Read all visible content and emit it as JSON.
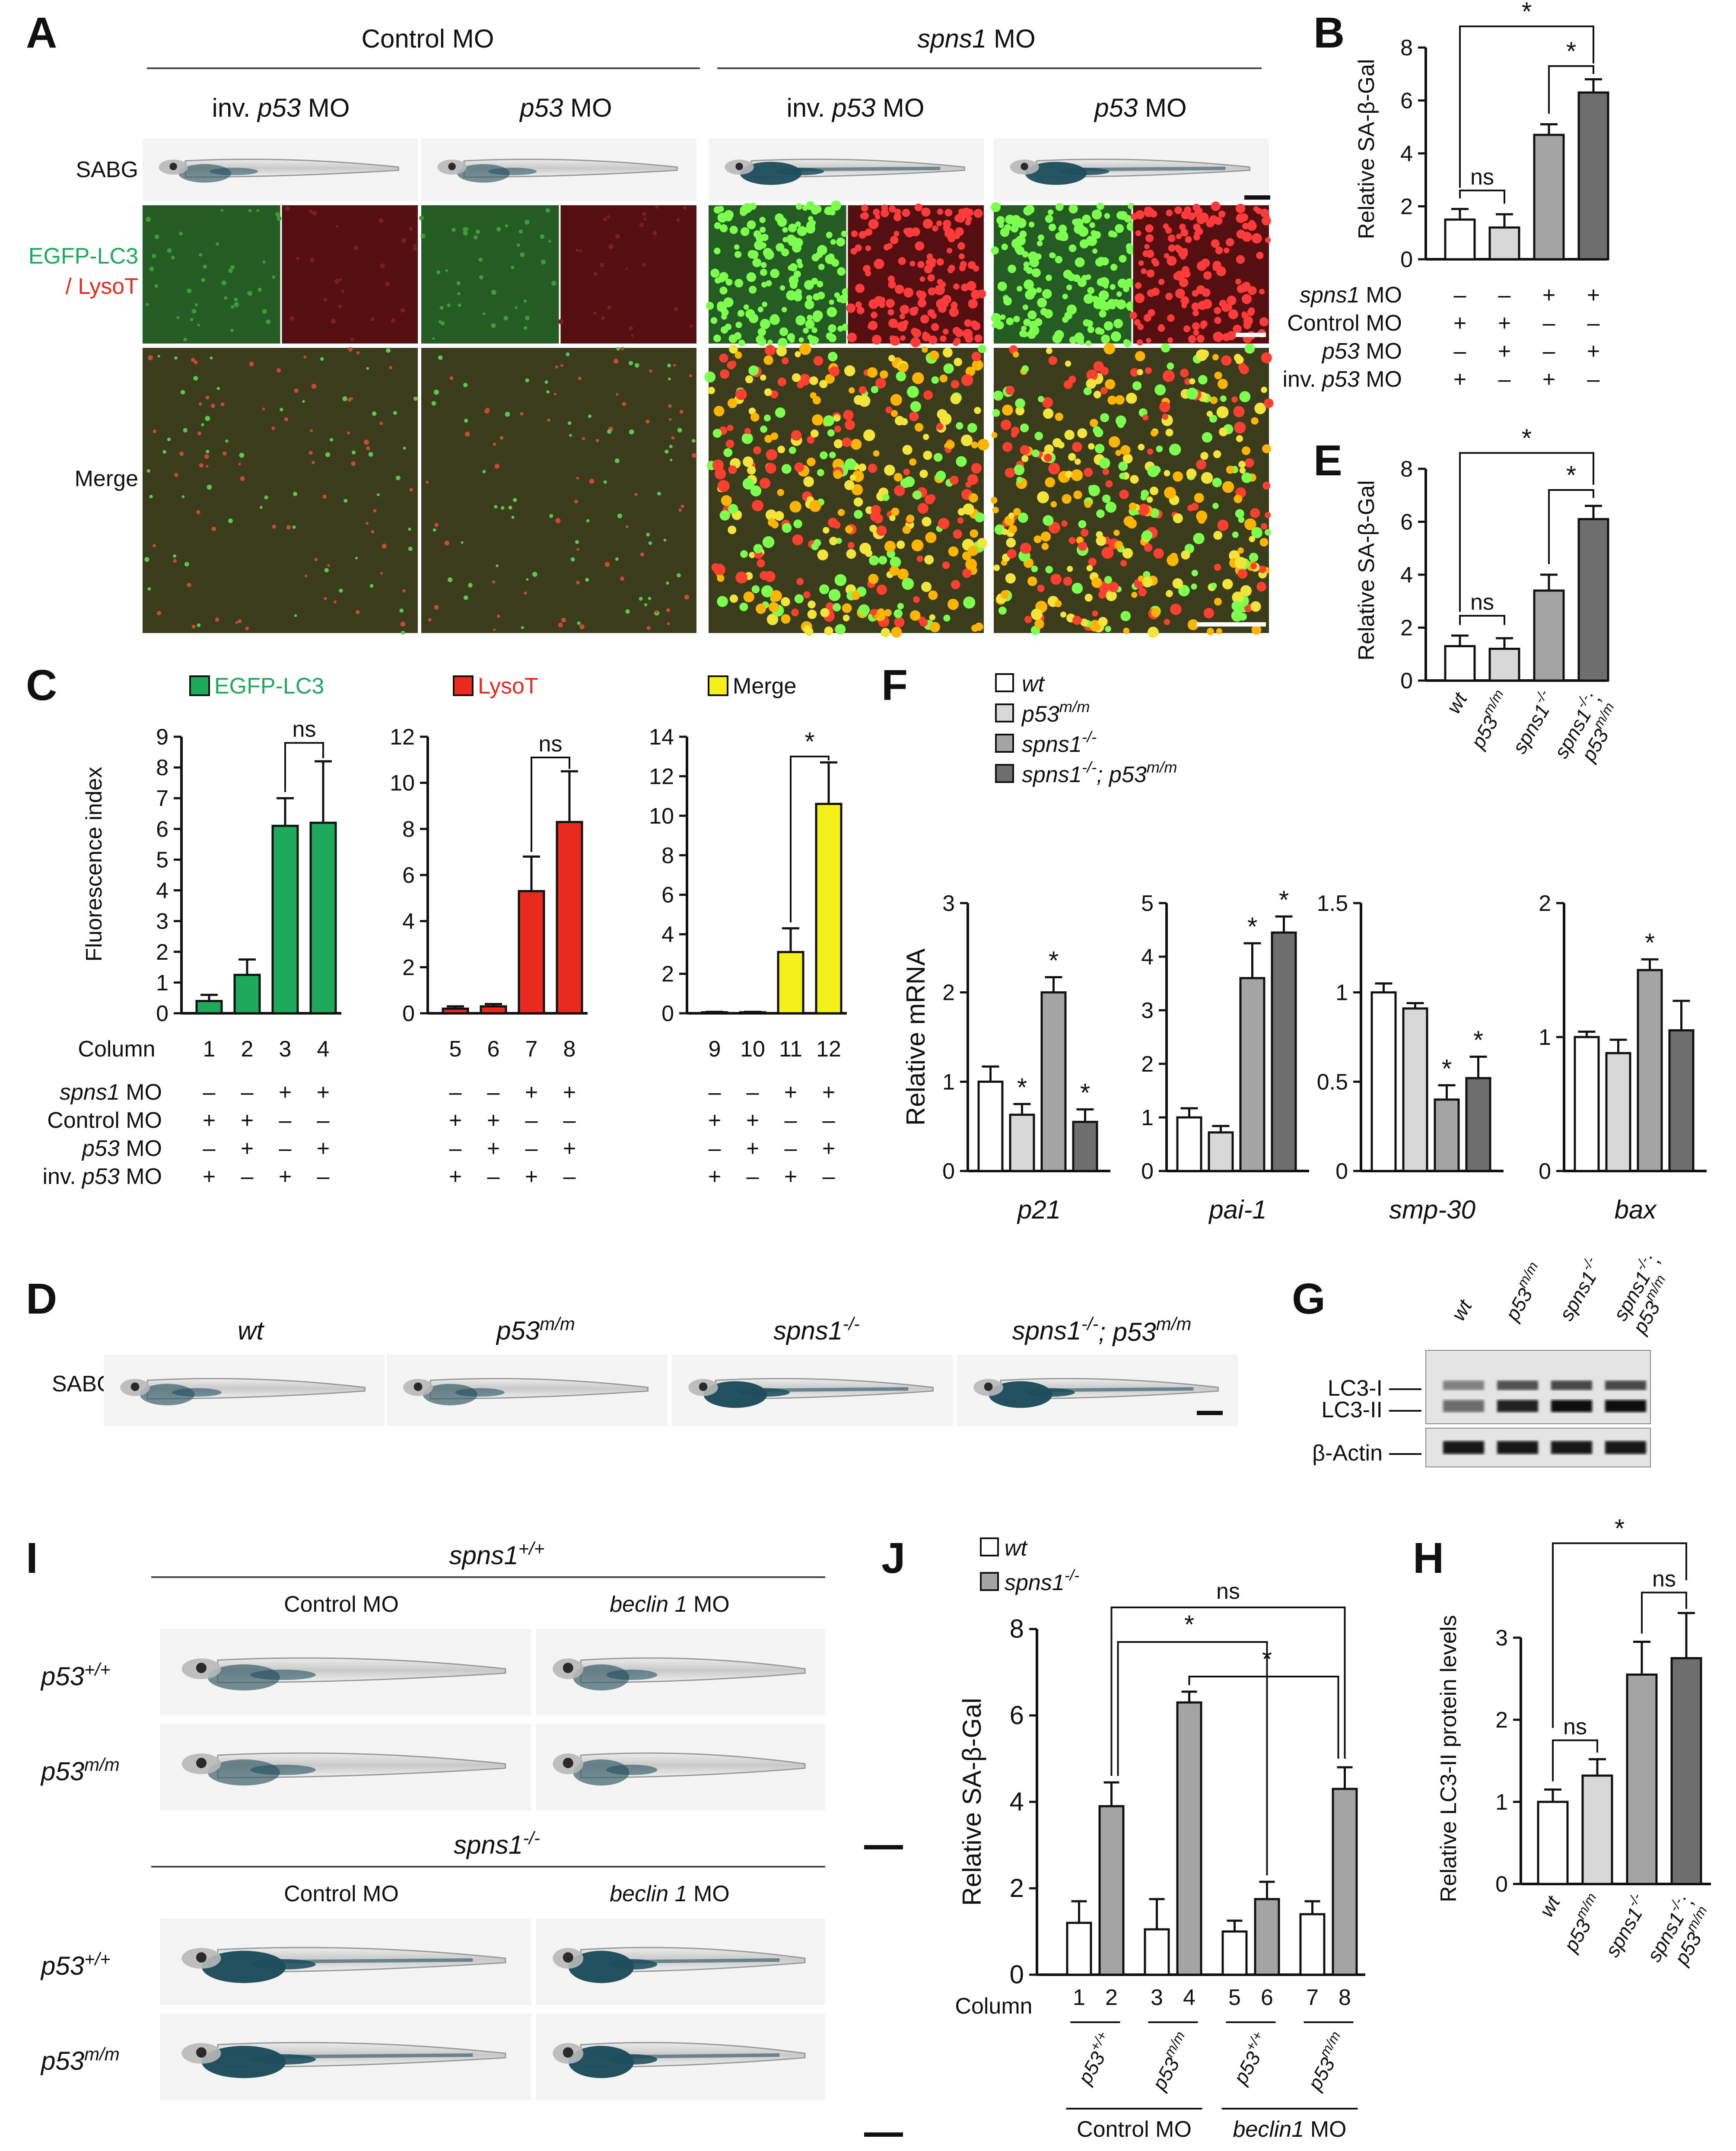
{
  "panel_letters": {
    "A": "A",
    "B": "B",
    "C": "C",
    "D": "D",
    "E": "E",
    "F": "F",
    "G": "G",
    "H": "H",
    "I": "I",
    "J": "J"
  },
  "colors": {
    "white": "#ffffff",
    "lightgray": "#d8d8d8",
    "midgray": "#a4a4a4",
    "darkgray": "#6e6e6e",
    "green": "#1daa5c",
    "red": "#e82a1f",
    "yellow": "#f5ef1a",
    "fish_blue": "#1e4d5c"
  },
  "panelA": {
    "groups": [
      {
        "label": "Control MO"
      },
      {
        "label": "spns1",
        "suffix": " MO"
      }
    ],
    "columns": [
      {
        "prefix": "inv. ",
        "gene": "p53",
        "suffix": " MO"
      },
      {
        "prefix": "",
        "gene": "p53",
        "suffix": " MO"
      },
      {
        "prefix": "inv. ",
        "gene": "p53",
        "suffix": " MO"
      },
      {
        "prefix": "",
        "gene": "p53",
        "suffix": " MO"
      }
    ],
    "row_sabg": "SABG",
    "row_lc3_a": "EGFP-LC3",
    "row_lc3_b": "/ LysoT",
    "row_merge": "Merge"
  },
  "matrix_rows": [
    {
      "gene": "spns1",
      "suffix": " MO",
      "marks": [
        "–",
        "–",
        "+",
        "+"
      ]
    },
    {
      "gene": "",
      "label": "Control MO",
      "marks": [
        "+",
        "+",
        "–",
        "–"
      ]
    },
    {
      "gene": "p53",
      "suffix": " MO",
      "marks": [
        "–",
        "+",
        "–",
        "+"
      ]
    },
    {
      "gene": "p53",
      "prefix": "inv. ",
      "suffix": " MO",
      "marks": [
        "+",
        "–",
        "+",
        "–"
      ]
    }
  ],
  "chart_data": [
    {
      "panel": "B",
      "type": "bar",
      "ylabel": "Relative SA-β-Gal",
      "ylim": [
        0,
        8
      ],
      "yticks": [
        0,
        2,
        4,
        6,
        8
      ],
      "values": [
        1.5,
        1.2,
        4.7,
        6.3
      ],
      "errors": [
        0.4,
        0.5,
        0.4,
        0.5
      ],
      "annotations": [
        {
          "from": 0,
          "to": 1,
          "text": "ns"
        },
        {
          "from": 2,
          "to": 3,
          "text": "*"
        },
        {
          "from": 0,
          "to": 3,
          "text": "*"
        }
      ]
    },
    {
      "panel": "C1",
      "type": "bar",
      "legend": "EGFP-LC3",
      "ylabel": "Fluorescence index",
      "ylim": [
        0,
        9
      ],
      "yticks": [
        0,
        1,
        2,
        3,
        4,
        5,
        6,
        7,
        8,
        9
      ],
      "categories": [
        "1",
        "2",
        "3",
        "4"
      ],
      "values": [
        0.4,
        1.25,
        6.1,
        6.2
      ],
      "errors": [
        0.2,
        0.5,
        0.9,
        2.0
      ],
      "annotations": [
        {
          "from": 2,
          "to": 3,
          "text": "ns"
        }
      ]
    },
    {
      "panel": "C2",
      "type": "bar",
      "legend": "LysoT",
      "ylim": [
        0,
        12
      ],
      "yticks": [
        0,
        2,
        4,
        6,
        8,
        10,
        12
      ],
      "categories": [
        "5",
        "6",
        "7",
        "8"
      ],
      "values": [
        0.2,
        0.3,
        5.3,
        8.3
      ],
      "errors": [
        0.1,
        0.1,
        1.5,
        2.2
      ],
      "annotations": [
        {
          "from": 2,
          "to": 3,
          "text": "ns"
        }
      ]
    },
    {
      "panel": "C3",
      "type": "bar",
      "legend": "Merge",
      "ylim": [
        0,
        14
      ],
      "yticks": [
        0,
        2,
        4,
        6,
        8,
        10,
        12,
        14
      ],
      "categories": [
        "9",
        "10",
        "11",
        "12"
      ],
      "values": [
        0.05,
        0.05,
        3.1,
        10.6
      ],
      "errors": [
        0.02,
        0.02,
        1.2,
        2.1
      ],
      "annotations": [
        {
          "from": 2,
          "to": 3,
          "text": "*"
        }
      ]
    },
    {
      "panel": "E",
      "type": "bar",
      "ylabel": "Relative SA-β-Gal",
      "ylim": [
        0,
        8
      ],
      "yticks": [
        0,
        2,
        4,
        6,
        8
      ],
      "values": [
        1.3,
        1.2,
        3.4,
        6.1
      ],
      "errors": [
        0.4,
        0.4,
        0.6,
        0.5
      ],
      "annotations": [
        {
          "from": 0,
          "to": 1,
          "text": "ns"
        },
        {
          "from": 2,
          "to": 3,
          "text": "*"
        },
        {
          "from": 0,
          "to": 3,
          "text": "*"
        }
      ]
    },
    {
      "panel": "F1",
      "type": "bar",
      "xlabel": "p21",
      "ylabel": "Relative mRNA",
      "ylim": [
        0,
        3
      ],
      "yticks": [
        0,
        1,
        2,
        3
      ],
      "values": [
        1.0,
        0.63,
        2.0,
        0.55
      ],
      "errors": [
        0.17,
        0.12,
        0.17,
        0.14
      ],
      "stars": [
        false,
        true,
        true,
        true
      ]
    },
    {
      "panel": "F2",
      "type": "bar",
      "xlabel": "pai-1",
      "ylim": [
        0,
        5
      ],
      "yticks": [
        0,
        1,
        2,
        3,
        4,
        5
      ],
      "values": [
        1.0,
        0.72,
        3.6,
        4.45
      ],
      "errors": [
        0.17,
        0.12,
        0.65,
        0.3
      ],
      "stars": [
        false,
        false,
        true,
        true
      ]
    },
    {
      "panel": "F3",
      "type": "bar",
      "xlabel": "smp-30",
      "ylim": [
        0,
        1.5
      ],
      "yticks": [
        0,
        0.5,
        1,
        1.5
      ],
      "values": [
        1.0,
        0.91,
        0.4,
        0.52
      ],
      "errors": [
        0.05,
        0.03,
        0.08,
        0.12
      ],
      "stars": [
        false,
        false,
        true,
        true
      ]
    },
    {
      "panel": "F4",
      "type": "bar",
      "xlabel": "bax",
      "ylim": [
        0,
        2
      ],
      "yticks": [
        0,
        1,
        2
      ],
      "values": [
        1.0,
        0.88,
        1.5,
        1.05
      ],
      "errors": [
        0.04,
        0.1,
        0.08,
        0.22
      ],
      "stars": [
        false,
        false,
        true,
        false
      ]
    },
    {
      "panel": "H",
      "type": "bar",
      "ylabel": "Relative LC3-II protein levels",
      "ylim": [
        0,
        3
      ],
      "yticks": [
        0,
        1,
        2,
        3
      ],
      "values": [
        1.0,
        1.32,
        2.55,
        2.75
      ],
      "errors": [
        0.15,
        0.2,
        0.4,
        0.55
      ],
      "annotations": [
        {
          "from": 0,
          "to": 1,
          "text": "ns"
        },
        {
          "from": 2,
          "to": 3,
          "text": "ns"
        },
        {
          "from": 0,
          "to": 3,
          "text": "*"
        }
      ]
    },
    {
      "panel": "J",
      "type": "bar",
      "ylabel": "Relative SA-β-Gal",
      "ylim": [
        0,
        8
      ],
      "yticks": [
        0,
        2,
        4,
        6,
        8
      ],
      "groups": [
        "p53+/+",
        "p53m/m",
        "p53+/+",
        "p53m/m"
      ],
      "series": [
        {
          "name": "wt",
          "values": [
            1.2,
            1.05,
            1.0,
            1.4
          ],
          "errors": [
            0.5,
            0.7,
            0.25,
            0.3
          ]
        },
        {
          "name": "spns1-/-",
          "values": [
            3.9,
            6.3,
            1.75,
            4.3
          ],
          "errors": [
            0.55,
            0.25,
            0.4,
            0.5
          ]
        }
      ],
      "annotations": [
        {
          "text": "ns"
        },
        {
          "text": "*"
        },
        {
          "text": "*"
        }
      ]
    }
  ],
  "panelC": {
    "col_label": "Column",
    "ylabel": "Fluorescence index"
  },
  "legendF": [
    {
      "gene": "wt",
      "sup": ""
    },
    {
      "gene": "p53",
      "sup": "m/m"
    },
    {
      "gene": "spns1",
      "sup": "-/-"
    },
    {
      "gene": "spns1",
      "sup": "-/-",
      "gene2": "; p53",
      "sup2": "m/m"
    }
  ],
  "genotypes": [
    {
      "a": "wt",
      "asup": ""
    },
    {
      "a": "p53",
      "asup": "m/m"
    },
    {
      "a": "spns1",
      "asup": "-/-"
    },
    {
      "a": "spns1",
      "asup": "-/-",
      "b": "; p53",
      "bsup": "m/m",
      "b_rot": "p53"
    }
  ],
  "panelD": {
    "row": "SABG"
  },
  "panelG": {
    "bands": [
      "LC3-I",
      "LC3-II",
      "β-Actin"
    ]
  },
  "panelI": {
    "top_title": "spns1",
    "top_sup": "+/+",
    "bottom_title": "spns1",
    "bottom_sup": "-/-",
    "col1": "Control MO",
    "col2_gene": "beclin 1",
    "col2_suffix": " MO",
    "row1": "p53",
    "row1_sup": "+/+",
    "row2": "p53",
    "row2_sup": "m/m"
  },
  "panelJ": {
    "legend_wt": "wt",
    "legend_mut": "spns1",
    "legend_mut_sup": "-/-",
    "col_label": "Column",
    "columns": [
      "1",
      "2",
      "3",
      "4",
      "5",
      "6",
      "7",
      "8"
    ],
    "group_wt": "p53",
    "group_wt_sup": "+/+",
    "group_mut": "p53",
    "group_mut_sup": "m/m",
    "bottom1": "Control MO",
    "bottom2_gene": "beclin1",
    "bottom2_suffix": " MO"
  }
}
